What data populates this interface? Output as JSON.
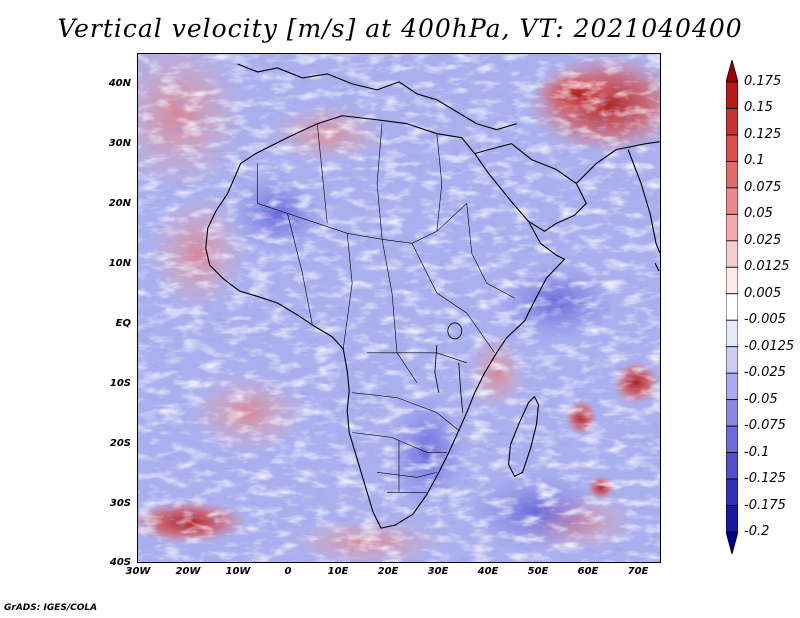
{
  "title": "Vertical velocity [m/s] at 400hPa, VT: 2021040400",
  "map": {
    "lon_range": [
      -30,
      75
    ],
    "lat_range": [
      -40,
      45
    ],
    "lat_labels": [
      "40N",
      "30N",
      "20N",
      "10N",
      "EQ",
      "10S",
      "20S",
      "30S",
      "40S"
    ],
    "lon_labels": [
      "30W",
      "20W",
      "10W",
      "0",
      "10E",
      "20E",
      "30E",
      "40E",
      "50E",
      "60E",
      "70E"
    ],
    "background_color": "#aab0ee"
  },
  "colorbar": {
    "levels": [
      "0.175",
      "0.15",
      "0.125",
      "0.1",
      "0.075",
      "0.05",
      "0.025",
      "0.0125",
      "0.005",
      "-0.005",
      "-0.0125",
      "-0.025",
      "-0.05",
      "-0.075",
      "-0.1",
      "-0.125",
      "-0.175",
      "-0.2"
    ],
    "colors": [
      "#a00000",
      "#b81818",
      "#c83232",
      "#d65050",
      "#e06c6c",
      "#ea8a8a",
      "#f2aaaa",
      "#f8cccc",
      "#fbe8e8",
      "#ffffff",
      "#e8e8fb",
      "#cccdf6",
      "#aaaaf0",
      "#8a8ae6",
      "#6c6cdc",
      "#5050cc",
      "#3232b8",
      "#1818a4",
      "#00008c"
    ]
  },
  "footer": "GrADS: IGES/COLA"
}
